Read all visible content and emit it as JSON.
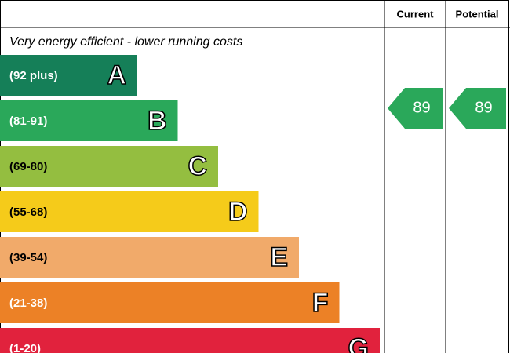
{
  "header": {
    "current": "Current",
    "potential": "Potential"
  },
  "top_label": "Very energy efficient - lower running costs",
  "bands": [
    {
      "range": "(92 plus)",
      "letter": "A",
      "color": "#157f58"
    },
    {
      "range": "(81-91)",
      "letter": "B",
      "color": "#2aa85a"
    },
    {
      "range": "(69-80)",
      "letter": "C",
      "color": "#94be40"
    },
    {
      "range": "(55-68)",
      "letter": "D",
      "color": "#f5cb1a"
    },
    {
      "range": "(39-54)",
      "letter": "E",
      "color": "#f1aa6a"
    },
    {
      "range": "(21-38)",
      "letter": "F",
      "color": "#ec8126"
    },
    {
      "range": "(1-20)",
      "letter": "G",
      "color": "#e1223d"
    }
  ],
  "current": 89,
  "potential": 89
}
